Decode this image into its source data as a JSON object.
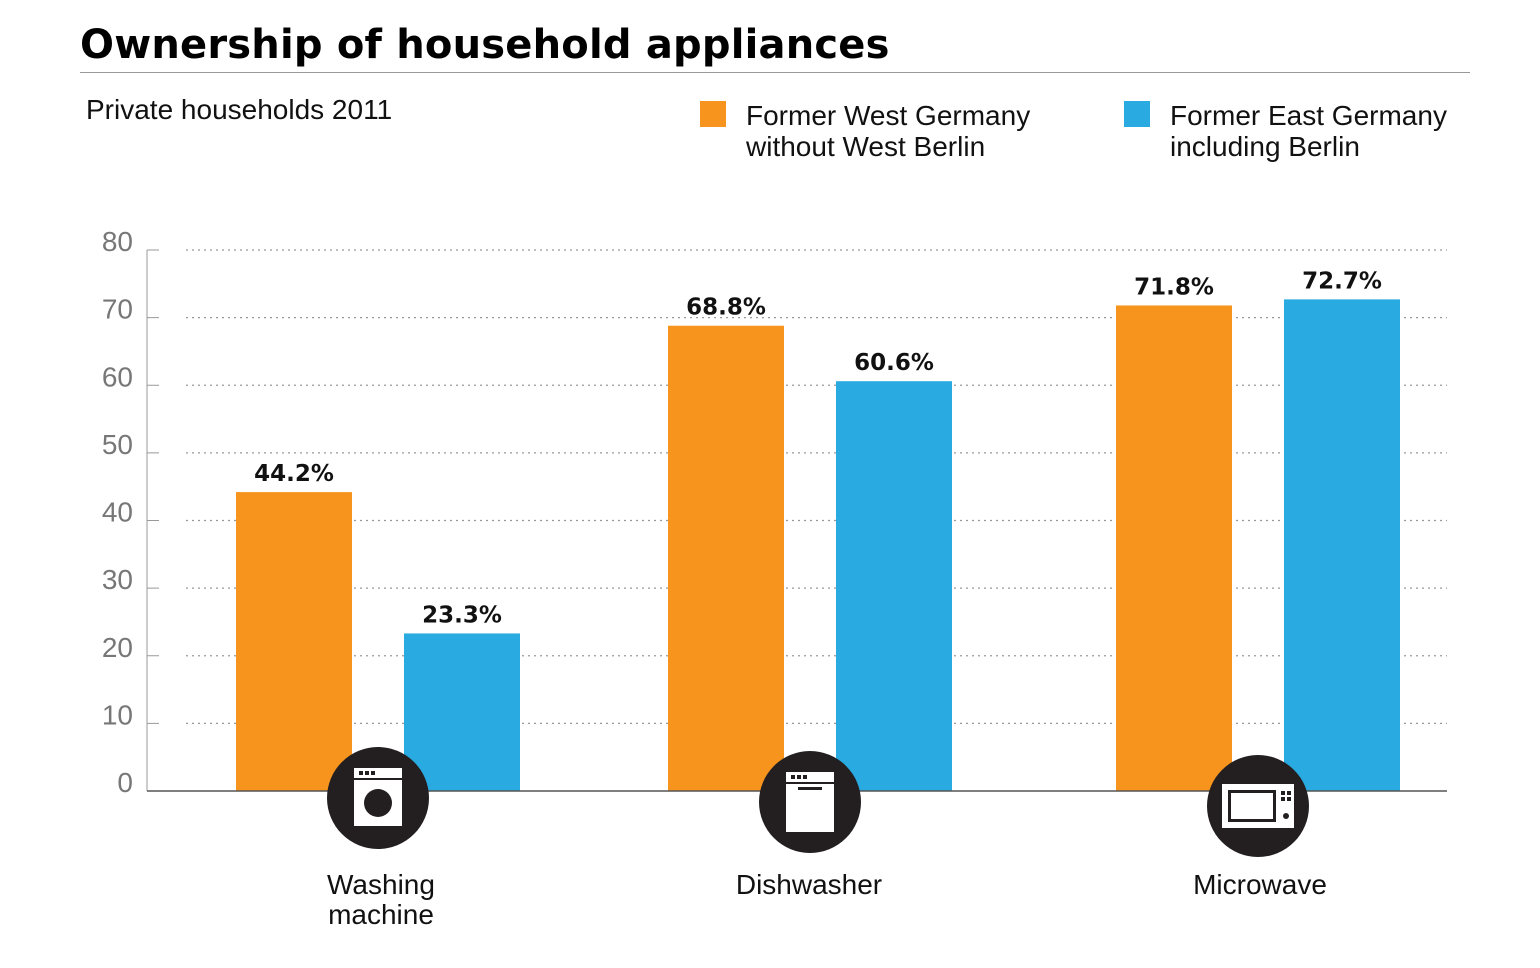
{
  "chart_data": {
    "type": "bar",
    "title": "Ownership of household appliances",
    "subtitle": "Private households 2011",
    "categories": [
      "Washing\nmachine",
      "Dishwasher",
      "Microwave"
    ],
    "series": [
      {
        "name": "Former West Germany\nwithout West Berlin",
        "color": "#F7941D",
        "values": [
          44.2,
          68.8,
          71.8
        ],
        "labels": [
          "44.2%",
          "68.8%",
          "71.8%"
        ]
      },
      {
        "name": "Former East Germany\nincluding Berlin",
        "color": "#29ABE2",
        "values": [
          23.3,
          60.6,
          72.7
        ],
        "labels": [
          "23.3%",
          "60.6%",
          "72.7%"
        ]
      }
    ],
    "ylim": [
      0,
      80
    ],
    "yticks": [
      0,
      10,
      20,
      30,
      40,
      50,
      60,
      70,
      80
    ],
    "grid": true,
    "legend": "top-right",
    "icons": [
      "washing-machine-icon",
      "dishwasher-icon",
      "microwave-icon"
    ]
  }
}
